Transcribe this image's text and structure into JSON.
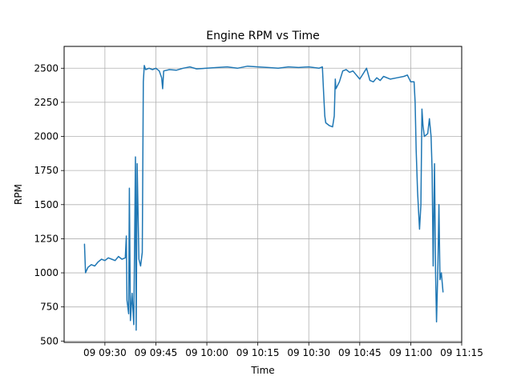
{
  "chart_data": {
    "type": "line",
    "title": "Engine RPM vs Time",
    "xlabel": "Time",
    "ylabel": "RPM",
    "grid": true,
    "legend": "none",
    "x_ticks": [
      "09 09:30",
      "09 09:45",
      "09 10:00",
      "09 10:15",
      "09 10:30",
      "09 10:45",
      "09 11:00",
      "09 11:15"
    ],
    "y_ticks": [
      500,
      750,
      1000,
      1250,
      1500,
      1750,
      2000,
      2250,
      2500
    ],
    "xlim": [
      "09:18",
      "11:15"
    ],
    "ylim": [
      490,
      2660
    ],
    "series": [
      {
        "color": "#1f77b4",
        "points": [
          [
            "09:24",
            1210
          ],
          [
            "09:24.3",
            1000
          ],
          [
            "09:25",
            1040
          ],
          [
            "09:26",
            1060
          ],
          [
            "09:27",
            1050
          ],
          [
            "09:28",
            1080
          ],
          [
            "09:29",
            1100
          ],
          [
            "09:30",
            1090
          ],
          [
            "09:31",
            1110
          ],
          [
            "09:32",
            1100
          ],
          [
            "09:33",
            1090
          ],
          [
            "09:34",
            1120
          ],
          [
            "09:35",
            1100
          ],
          [
            "09:36",
            1110
          ],
          [
            "09:36.3",
            1270
          ],
          [
            "09:36.5",
            800
          ],
          [
            "09:37",
            700
          ],
          [
            "09:37.2",
            1620
          ],
          [
            "09:37.5",
            650
          ],
          [
            "09:38",
            850
          ],
          [
            "09:38.5",
            620
          ],
          [
            "09:39",
            1850
          ],
          [
            "09:39.2",
            580
          ],
          [
            "09:39.5",
            1800
          ],
          [
            "09:40",
            1100
          ],
          [
            "09:40.5",
            1050
          ],
          [
            "09:41",
            1150
          ],
          [
            "09:41.3",
            2400
          ],
          [
            "09:41.6",
            2520
          ],
          [
            "09:42",
            2490
          ],
          [
            "09:43",
            2500
          ],
          [
            "09:44",
            2490
          ],
          [
            "09:45",
            2500
          ],
          [
            "09:46",
            2480
          ],
          [
            "09:46.7",
            2430
          ],
          [
            "09:47",
            2350
          ],
          [
            "09:47.3",
            2480
          ],
          [
            "09:49",
            2490
          ],
          [
            "09:51",
            2485
          ],
          [
            "09:53",
            2500
          ],
          [
            "09:55",
            2510
          ],
          [
            "09:57",
            2495
          ],
          [
            "10:00",
            2500
          ],
          [
            "10:03",
            2505
          ],
          [
            "10:06",
            2510
          ],
          [
            "10:09",
            2500
          ],
          [
            "10:12",
            2515
          ],
          [
            "10:15",
            2510
          ],
          [
            "10:18",
            2505
          ],
          [
            "10:21",
            2500
          ],
          [
            "10:24",
            2510
          ],
          [
            "10:27",
            2505
          ],
          [
            "10:30",
            2510
          ],
          [
            "10:33",
            2500
          ],
          [
            "10:34",
            2510
          ],
          [
            "10:34.4",
            2300
          ],
          [
            "10:34.7",
            2150
          ],
          [
            "10:35",
            2100
          ],
          [
            "10:36",
            2080
          ],
          [
            "10:37",
            2070
          ],
          [
            "10:37.5",
            2150
          ],
          [
            "10:37.8",
            2420
          ],
          [
            "10:38",
            2350
          ],
          [
            "10:39",
            2400
          ],
          [
            "10:40",
            2480
          ],
          [
            "10:41",
            2490
          ],
          [
            "10:42",
            2470
          ],
          [
            "10:43",
            2480
          ],
          [
            "10:44",
            2450
          ],
          [
            "10:45",
            2420
          ],
          [
            "10:46",
            2460
          ],
          [
            "10:47",
            2500
          ],
          [
            "10:48",
            2410
          ],
          [
            "10:49",
            2400
          ],
          [
            "10:50",
            2430
          ],
          [
            "10:51",
            2410
          ],
          [
            "10:52",
            2440
          ],
          [
            "10:54",
            2420
          ],
          [
            "10:56",
            2430
          ],
          [
            "10:58",
            2440
          ],
          [
            "10:59",
            2450
          ],
          [
            "11:00",
            2400
          ],
          [
            "11:01",
            2400
          ],
          [
            "11:01.3",
            2250
          ],
          [
            "11:01.6",
            1900
          ],
          [
            "11:02",
            1600
          ],
          [
            "11:02.3",
            1450
          ],
          [
            "11:02.6",
            1320
          ],
          [
            "11:03",
            1500
          ],
          [
            "11:03.3",
            2200
          ],
          [
            "11:03.6",
            2080
          ],
          [
            "11:04",
            2000
          ],
          [
            "11:05",
            2020
          ],
          [
            "11:05.5",
            2130
          ],
          [
            "11:06",
            2000
          ],
          [
            "11:06.3",
            1750
          ],
          [
            "11:06.6",
            1050
          ],
          [
            "11:07",
            1800
          ],
          [
            "11:07.3",
            1000
          ],
          [
            "11:07.6",
            640
          ],
          [
            "11:08",
            1050
          ],
          [
            "11:08.3",
            1500
          ],
          [
            "11:08.6",
            950
          ],
          [
            "11:09",
            1000
          ],
          [
            "11:09.5",
            860
          ]
        ]
      }
    ]
  }
}
